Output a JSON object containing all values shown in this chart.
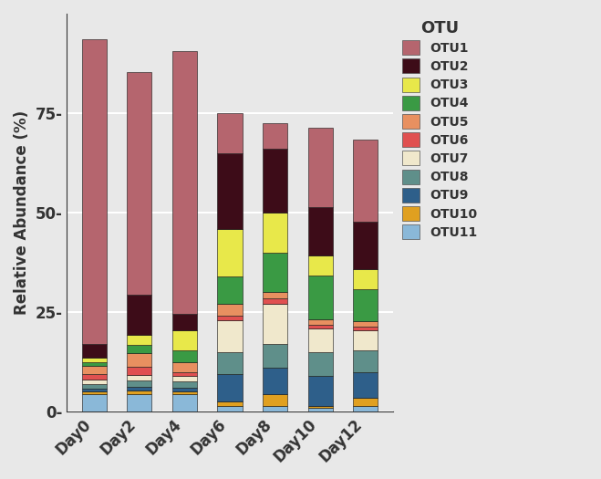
{
  "categories": [
    "Day0",
    "Day2",
    "Day4",
    "Day6",
    "Day8",
    "Day10",
    "Day12"
  ],
  "otus": [
    "OTU11",
    "OTU10",
    "OTU9",
    "OTU8",
    "OTU7",
    "OTU6",
    "OTU5",
    "OTU4",
    "OTU3",
    "OTU2",
    "OTU1"
  ],
  "colors": {
    "OTU1": "#b5656e",
    "OTU2": "#3d0c18",
    "OTU3": "#e8e84a",
    "OTU4": "#3a9a44",
    "OTU5": "#e89060",
    "OTU6": "#e05050",
    "OTU7": "#f0e8cc",
    "OTU8": "#5f8f8a",
    "OTU9": "#2e5f8a",
    "OTU10": "#e0a020",
    "OTU11": "#8ab8d8"
  },
  "data": {
    "OTU11": [
      4.5,
      4.5,
      4.5,
      1.5,
      1.5,
      1.0,
      1.5
    ],
    "OTU10": [
      0.5,
      0.8,
      0.5,
      1.0,
      3.0,
      0.5,
      2.0
    ],
    "OTU9": [
      0.8,
      1.0,
      1.0,
      7.0,
      6.5,
      7.5,
      6.5
    ],
    "OTU8": [
      1.2,
      1.5,
      1.5,
      5.5,
      6.0,
      6.0,
      5.5
    ],
    "OTU7": [
      1.0,
      1.5,
      1.5,
      8.0,
      10.0,
      6.0,
      5.0
    ],
    "OTU6": [
      1.5,
      2.0,
      1.0,
      1.0,
      1.5,
      0.8,
      0.8
    ],
    "OTU5": [
      2.0,
      3.5,
      2.5,
      3.0,
      1.5,
      1.5,
      1.5
    ],
    "OTU4": [
      1.0,
      2.0,
      3.0,
      7.0,
      10.0,
      11.0,
      8.0
    ],
    "OTU3": [
      1.0,
      2.5,
      5.0,
      12.0,
      10.0,
      5.0,
      5.0
    ],
    "OTU2": [
      3.5,
      10.0,
      4.0,
      19.0,
      16.0,
      12.0,
      12.0
    ],
    "OTU1": [
      76.5,
      56.0,
      66.0,
      10.0,
      6.5,
      20.0,
      20.5
    ]
  },
  "ylabel": "Relative Abundance (%)",
  "legend_title": "OTU",
  "ylim": [
    0,
    100
  ],
  "yticks": [
    0,
    25,
    50,
    75
  ],
  "background_color": "#e8e8e8",
  "grid_color": "#ffffff",
  "bar_edge_color": "#111111",
  "bar_width": 0.55
}
